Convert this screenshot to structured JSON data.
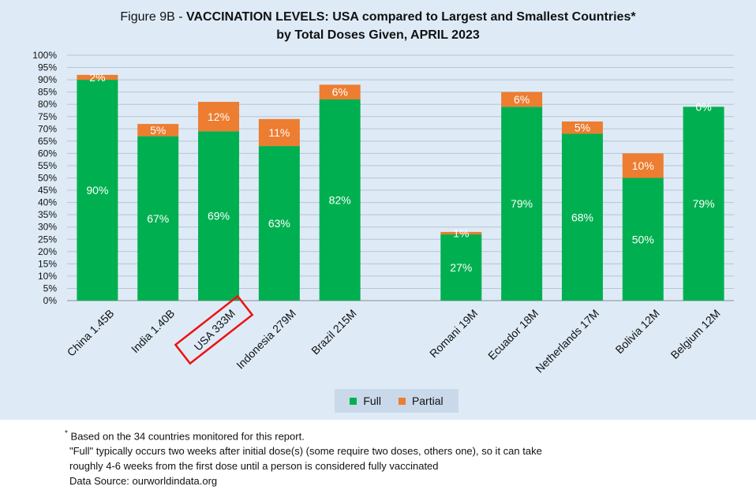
{
  "title": {
    "prefix": "Figure 9B - ",
    "main": "VACCINATION LEVELS:  USA compared to Largest and Smallest Countries*",
    "line2": "by Total Doses Given, APRIL 2023"
  },
  "legend": {
    "full": "Full",
    "partial": "Partial"
  },
  "colors": {
    "full": "#00b050",
    "partial": "#ed7d31",
    "background": "#deebf7",
    "highlight": "#ee1111"
  },
  "notes": {
    "star": "*",
    "line1": "Based on the 34 countries monitored for this report.",
    "line2": "\"Full\" typically occurs two weeks after initial dose(s) (some require two doses, others one),  so it can take",
    "line3": "roughly 4-6 weeks from the first dose until a person is considered fully vaccinated",
    "line4": "Data Source:  ourworldindata.org"
  },
  "chart_data": {
    "type": "bar",
    "stacked": true,
    "categories": [
      "China 1.45B",
      "India 1.40B",
      "USA 333M",
      "Indonesia 279M",
      "Brazil 215M",
      "",
      "Romani 19M",
      "Ecuador 18M",
      "Netherlands 17M",
      "Bolivia 12M",
      "Belgium 12M"
    ],
    "series": [
      {
        "name": "Full",
        "values": [
          90,
          67,
          69,
          63,
          82,
          null,
          27,
          79,
          68,
          50,
          79
        ],
        "labels": [
          "90%",
          "67%",
          "69%",
          "63%",
          "82%",
          "",
          "27%",
          "79%",
          "68%",
          "50%",
          "79%"
        ]
      },
      {
        "name": "Partial",
        "values": [
          2,
          5,
          12,
          11,
          6,
          null,
          1,
          6,
          5,
          10,
          0
        ],
        "labels": [
          "2%",
          "5%",
          "12%",
          "11%",
          "6%",
          "",
          "1%",
          "6%",
          "5%",
          "10%",
          "0%"
        ]
      }
    ],
    "yticks": [
      "0%",
      "5%",
      "10%",
      "15%",
      "20%",
      "25%",
      "30%",
      "35%",
      "40%",
      "45%",
      "50%",
      "55%",
      "60%",
      "65%",
      "70%",
      "75%",
      "80%",
      "85%",
      "90%",
      "95%",
      "100%"
    ],
    "ylim": [
      0,
      100
    ],
    "grid": true,
    "legend_position": "bottom",
    "highlighted_category": "USA 333M"
  }
}
